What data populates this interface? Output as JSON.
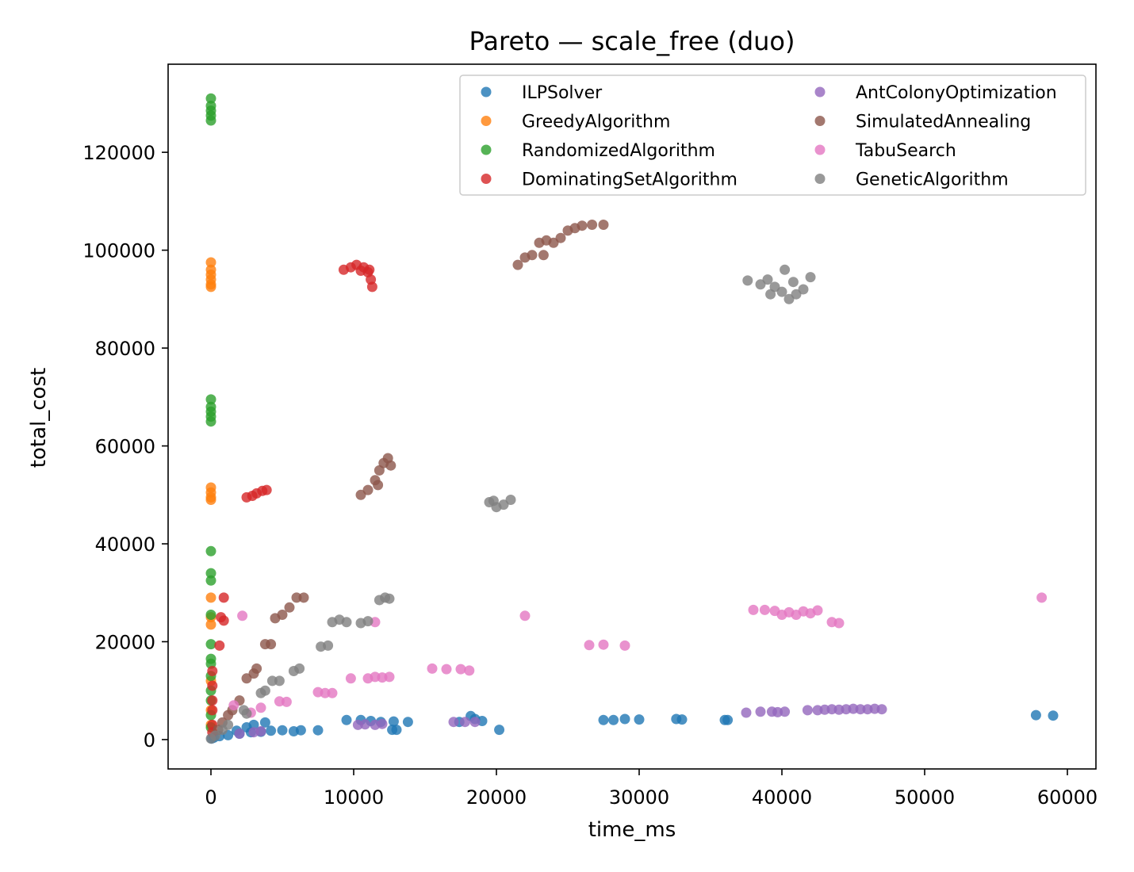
{
  "chart_data": {
    "type": "scatter",
    "title": "Pareto — scale_free (duo)",
    "xlabel": "time_ms",
    "ylabel": "total_cost",
    "xlim": [
      -3000,
      62000
    ],
    "ylim": [
      -6000,
      138000
    ],
    "xticks": [
      0,
      10000,
      20000,
      30000,
      40000,
      50000,
      60000
    ],
    "yticks": [
      0,
      20000,
      40000,
      60000,
      80000,
      100000,
      120000
    ],
    "xtick_labels": [
      "0",
      "10000",
      "20000",
      "30000",
      "40000",
      "50000",
      "60000"
    ],
    "ytick_labels": [
      "0",
      "20000",
      "40000",
      "60000",
      "80000",
      "100000",
      "120000"
    ],
    "grid": false,
    "legend_position": "top-right",
    "legend_columns": 2,
    "series": [
      {
        "name": "ILPSolver",
        "color": "#1f77b4",
        "points": [
          [
            50,
            200
          ],
          [
            200,
            400
          ],
          [
            600,
            700
          ],
          [
            1200,
            900
          ],
          [
            2000,
            1200
          ],
          [
            2800,
            1500
          ],
          [
            3500,
            1600
          ],
          [
            4200,
            1800
          ],
          [
            5000,
            1900
          ],
          [
            5800,
            1700
          ],
          [
            6300,
            1900
          ],
          [
            7500,
            1900
          ],
          [
            3000,
            3000
          ],
          [
            3800,
            3500
          ],
          [
            2500,
            2500
          ],
          [
            1800,
            1800
          ],
          [
            9500,
            4000
          ],
          [
            10500,
            4000
          ],
          [
            11200,
            3800
          ],
          [
            11900,
            3600
          ],
          [
            12700,
            2000
          ],
          [
            13000,
            2000
          ],
          [
            12800,
            3700
          ],
          [
            13800,
            3600
          ],
          [
            17400,
            3600
          ],
          [
            18200,
            4800
          ],
          [
            18500,
            4200
          ],
          [
            19000,
            3800
          ],
          [
            20200,
            2000
          ],
          [
            27500,
            4000
          ],
          [
            28200,
            4000
          ],
          [
            29000,
            4200
          ],
          [
            30000,
            4100
          ],
          [
            32600,
            4200
          ],
          [
            33000,
            4100
          ],
          [
            36000,
            4000
          ],
          [
            36200,
            4000
          ],
          [
            57800,
            5000
          ],
          [
            59000,
            4900
          ]
        ]
      },
      {
        "name": "GreedyAlgorithm",
        "color": "#ff7f0e",
        "points": [
          [
            0,
            97500
          ],
          [
            0,
            96000
          ],
          [
            0,
            95000
          ],
          [
            0,
            94000
          ],
          [
            0,
            93000
          ],
          [
            0,
            92500
          ],
          [
            0,
            51500
          ],
          [
            0,
            50500
          ],
          [
            0,
            49500
          ],
          [
            0,
            49000
          ],
          [
            0,
            29000
          ],
          [
            0,
            25000
          ],
          [
            0,
            23500
          ],
          [
            0,
            12000
          ],
          [
            0,
            6000
          ],
          [
            0,
            3000
          ]
        ]
      },
      {
        "name": "RandomizedAlgorithm",
        "color": "#2ca02c",
        "points": [
          [
            0,
            131000
          ],
          [
            0,
            129500
          ],
          [
            0,
            128500
          ],
          [
            0,
            127500
          ],
          [
            0,
            126500
          ],
          [
            0,
            69500
          ],
          [
            0,
            68000
          ],
          [
            0,
            67000
          ],
          [
            0,
            66000
          ],
          [
            0,
            65000
          ],
          [
            0,
            38500
          ],
          [
            0,
            34000
          ],
          [
            0,
            32500
          ],
          [
            0,
            25500
          ],
          [
            0,
            19500
          ],
          [
            0,
            16500
          ],
          [
            0,
            15500
          ],
          [
            0,
            13000
          ],
          [
            0,
            10000
          ],
          [
            0,
            8000
          ],
          [
            0,
            5000
          ],
          [
            0,
            2500
          ]
        ]
      },
      {
        "name": "DominatingSetAlgorithm",
        "color": "#d62728",
        "points": [
          [
            9300,
            96000
          ],
          [
            9800,
            96500
          ],
          [
            10200,
            97000
          ],
          [
            10700,
            96500
          ],
          [
            11000,
            95500
          ],
          [
            11200,
            94000
          ],
          [
            11300,
            92500
          ],
          [
            11100,
            96000
          ],
          [
            10500,
            95800
          ],
          [
            2500,
            49500
          ],
          [
            2900,
            49800
          ],
          [
            3200,
            50300
          ],
          [
            3600,
            50800
          ],
          [
            3900,
            51000
          ],
          [
            900,
            29000
          ],
          [
            700,
            25000
          ],
          [
            900,
            24300
          ],
          [
            600,
            19200
          ],
          [
            100,
            14000
          ],
          [
            100,
            11000
          ],
          [
            100,
            8000
          ],
          [
            100,
            6000
          ],
          [
            100,
            3000
          ],
          [
            100,
            1500
          ]
        ]
      },
      {
        "name": "AntColonyOptimization",
        "color": "#9467bd",
        "points": [
          [
            2000,
            1200
          ],
          [
            3000,
            1500
          ],
          [
            3500,
            1700
          ],
          [
            10300,
            3000
          ],
          [
            10800,
            3100
          ],
          [
            11500,
            3000
          ],
          [
            12000,
            3200
          ],
          [
            17000,
            3600
          ],
          [
            17800,
            3600
          ],
          [
            18500,
            3600
          ],
          [
            37500,
            5500
          ],
          [
            38500,
            5700
          ],
          [
            39300,
            5700
          ],
          [
            39700,
            5600
          ],
          [
            40200,
            5700
          ],
          [
            41800,
            6000
          ],
          [
            42500,
            6000
          ],
          [
            43000,
            6100
          ],
          [
            43500,
            6200
          ],
          [
            44000,
            6100
          ],
          [
            44500,
            6200
          ],
          [
            45000,
            6300
          ],
          [
            45500,
            6200
          ],
          [
            46000,
            6200
          ],
          [
            46500,
            6300
          ],
          [
            47000,
            6200
          ]
        ]
      },
      {
        "name": "SimulatedAnnealing",
        "color": "#8c564b",
        "points": [
          [
            21500,
            97000
          ],
          [
            22000,
            98500
          ],
          [
            22500,
            99000
          ],
          [
            23000,
            101500
          ],
          [
            23500,
            102000
          ],
          [
            24000,
            101500
          ],
          [
            24500,
            102500
          ],
          [
            25000,
            104000
          ],
          [
            25500,
            104500
          ],
          [
            26000,
            105000
          ],
          [
            26700,
            105200
          ],
          [
            27500,
            105200
          ],
          [
            23300,
            99000
          ],
          [
            10500,
            50000
          ],
          [
            11000,
            51000
          ],
          [
            11500,
            53000
          ],
          [
            11800,
            55000
          ],
          [
            12100,
            56500
          ],
          [
            12400,
            57500
          ],
          [
            12600,
            56000
          ],
          [
            11700,
            52000
          ],
          [
            4500,
            24800
          ],
          [
            5000,
            25500
          ],
          [
            5500,
            27000
          ],
          [
            6000,
            29000
          ],
          [
            6500,
            29000
          ],
          [
            3800,
            19500
          ],
          [
            4200,
            19500
          ],
          [
            2500,
            12500
          ],
          [
            3000,
            13500
          ],
          [
            3200,
            14500
          ],
          [
            2000,
            8000
          ],
          [
            1500,
            6000
          ],
          [
            1200,
            5000
          ],
          [
            800,
            3500
          ],
          [
            500,
            2000
          ]
        ]
      },
      {
        "name": "TabuSearch",
        "color": "#e377c2",
        "points": [
          [
            2200,
            25300
          ],
          [
            11500,
            24000
          ],
          [
            22000,
            25300
          ],
          [
            9800,
            12500
          ],
          [
            11000,
            12500
          ],
          [
            11500,
            12800
          ],
          [
            12000,
            12700
          ],
          [
            12500,
            12800
          ],
          [
            15500,
            14500
          ],
          [
            16500,
            14400
          ],
          [
            17500,
            14400
          ],
          [
            18100,
            14100
          ],
          [
            7500,
            9700
          ],
          [
            8000,
            9500
          ],
          [
            8500,
            9500
          ],
          [
            4800,
            7800
          ],
          [
            5300,
            7700
          ],
          [
            3500,
            6500
          ],
          [
            2800,
            5500
          ],
          [
            1600,
            7000
          ],
          [
            26500,
            19300
          ],
          [
            27500,
            19400
          ],
          [
            29000,
            19200
          ],
          [
            38000,
            26500
          ],
          [
            38800,
            26500
          ],
          [
            39500,
            26300
          ],
          [
            40000,
            25500
          ],
          [
            40500,
            26000
          ],
          [
            41000,
            25500
          ],
          [
            41500,
            26200
          ],
          [
            42000,
            25800
          ],
          [
            42500,
            26400
          ],
          [
            43500,
            24000
          ],
          [
            44000,
            23800
          ],
          [
            58200,
            29000
          ]
        ]
      },
      {
        "name": "GeneticAlgorithm",
        "color": "#7f7f7f",
        "points": [
          [
            37600,
            93800
          ],
          [
            38500,
            93000
          ],
          [
            39000,
            94000
          ],
          [
            39500,
            92500
          ],
          [
            40000,
            91500
          ],
          [
            40500,
            90000
          ],
          [
            41000,
            91000
          ],
          [
            41500,
            92000
          ],
          [
            42000,
            94500
          ],
          [
            40200,
            96000
          ],
          [
            39200,
            91000
          ],
          [
            40800,
            93500
          ],
          [
            19500,
            48500
          ],
          [
            20000,
            47500
          ],
          [
            20500,
            48000
          ],
          [
            21000,
            49000
          ],
          [
            19800,
            48800
          ],
          [
            8500,
            24000
          ],
          [
            9000,
            24500
          ],
          [
            9500,
            24000
          ],
          [
            10500,
            23800
          ],
          [
            11000,
            24200
          ],
          [
            11800,
            28500
          ],
          [
            12200,
            29000
          ],
          [
            12500,
            28800
          ],
          [
            7700,
            19000
          ],
          [
            8200,
            19200
          ],
          [
            5800,
            14000
          ],
          [
            6200,
            14500
          ],
          [
            4300,
            12000
          ],
          [
            4800,
            12000
          ],
          [
            3800,
            10000
          ],
          [
            3500,
            9500
          ],
          [
            2300,
            6000
          ],
          [
            2500,
            5300
          ],
          [
            1200,
            3000
          ],
          [
            800,
            2000
          ],
          [
            300,
            800
          ],
          [
            0,
            200
          ]
        ]
      }
    ]
  }
}
